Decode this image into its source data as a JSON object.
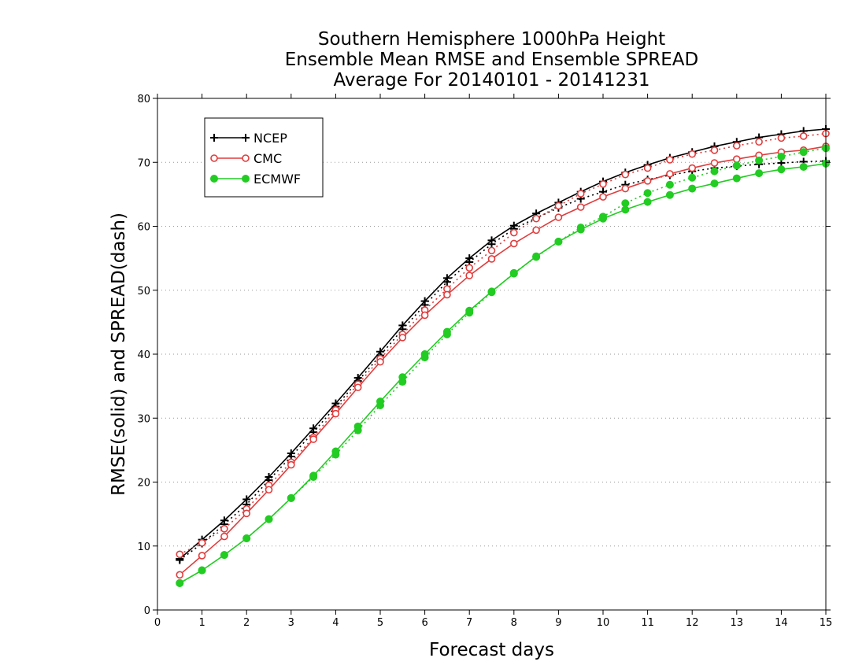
{
  "chart_data": {
    "type": "line",
    "title_lines": [
      "Southern Hemisphere 1000hPa Height",
      "Ensemble Mean RMSE and Ensemble SPREAD",
      "Average For 20140101 - 20141231"
    ],
    "xlabel": "Forecast days",
    "ylabel": "RMSE(solid) and SPREAD(dash)",
    "xlim": [
      0,
      15
    ],
    "ylim": [
      0,
      80
    ],
    "xticks": [
      0,
      1,
      2,
      3,
      4,
      5,
      6,
      7,
      8,
      9,
      10,
      11,
      12,
      13,
      14,
      15
    ],
    "yticks": [
      0,
      10,
      20,
      30,
      40,
      50,
      60,
      70,
      80
    ],
    "grid": "horizontal-dotted",
    "legend_position": "top-left",
    "x": [
      0.5,
      1,
      1.5,
      2,
      2.5,
      3,
      3.5,
      4,
      4.5,
      5,
      5.5,
      6,
      6.5,
      7,
      7.5,
      8,
      8.5,
      9,
      9.5,
      10,
      10.5,
      11,
      11.5,
      12,
      12.5,
      13,
      13.5,
      14,
      14.5,
      15
    ],
    "series": [
      {
        "name": "NCEP",
        "color": "#000000",
        "marker": "plus",
        "rmse": [
          8.0,
          11.0,
          14.0,
          17.3,
          20.8,
          24.5,
          28.4,
          32.3,
          36.3,
          40.4,
          44.5,
          48.3,
          51.9,
          55.0,
          57.8,
          60.1,
          62.0,
          63.7,
          65.4,
          67.0,
          68.4,
          69.6,
          70.7,
          71.6,
          72.5,
          73.2,
          73.9,
          74.4,
          74.9,
          75.2
        ],
        "spread": [
          7.8,
          10.4,
          13.4,
          16.5,
          20.3,
          24.0,
          27.8,
          31.8,
          35.8,
          39.8,
          43.9,
          47.7,
          51.3,
          54.4,
          57.2,
          59.6,
          61.3,
          62.9,
          64.3,
          65.4,
          66.5,
          67.3,
          68.0,
          68.6,
          69.1,
          69.4,
          69.7,
          69.9,
          70.1,
          70.2
        ]
      },
      {
        "name": "CMC",
        "color": "#e03c3c",
        "marker": "open-circle",
        "rmse": [
          5.5,
          8.5,
          11.5,
          15.1,
          18.8,
          22.7,
          26.7,
          30.7,
          34.8,
          38.8,
          42.6,
          46.1,
          49.3,
          52.3,
          54.9,
          57.3,
          59.4,
          61.4,
          63.0,
          64.6,
          65.9,
          67.1,
          68.2,
          69.1,
          69.9,
          70.5,
          71.1,
          71.6,
          71.9,
          72.5
        ],
        "spread": [
          8.7,
          10.5,
          12.7,
          15.8,
          19.5,
          23.1,
          27.0,
          31.3,
          35.3,
          39.3,
          43.1,
          46.9,
          50.2,
          53.5,
          56.2,
          59.0,
          61.2,
          63.2,
          65.1,
          66.6,
          68.1,
          69.1,
          70.4,
          71.3,
          71.9,
          72.6,
          73.2,
          73.8,
          74.1,
          74.5
        ]
      },
      {
        "name": "ECMWF",
        "color": "#22cc22",
        "marker": "filled-circle",
        "rmse": [
          4.2,
          6.2,
          8.6,
          11.2,
          14.2,
          17.5,
          21.0,
          24.8,
          28.7,
          32.6,
          36.4,
          40.0,
          43.5,
          46.8,
          49.8,
          52.6,
          55.3,
          57.6,
          59.5,
          61.2,
          62.6,
          63.8,
          64.9,
          65.9,
          66.7,
          67.5,
          68.3,
          68.9,
          69.3,
          69.8
        ],
        "spread": [
          4.2,
          6.2,
          8.6,
          11.2,
          14.2,
          17.5,
          20.8,
          24.3,
          28.1,
          32.0,
          35.7,
          39.5,
          43.1,
          46.5,
          49.7,
          52.7,
          55.2,
          57.6,
          59.8,
          61.5,
          63.6,
          65.2,
          66.5,
          67.6,
          68.6,
          69.5,
          70.3,
          70.9,
          71.6,
          72.2
        ]
      }
    ]
  }
}
